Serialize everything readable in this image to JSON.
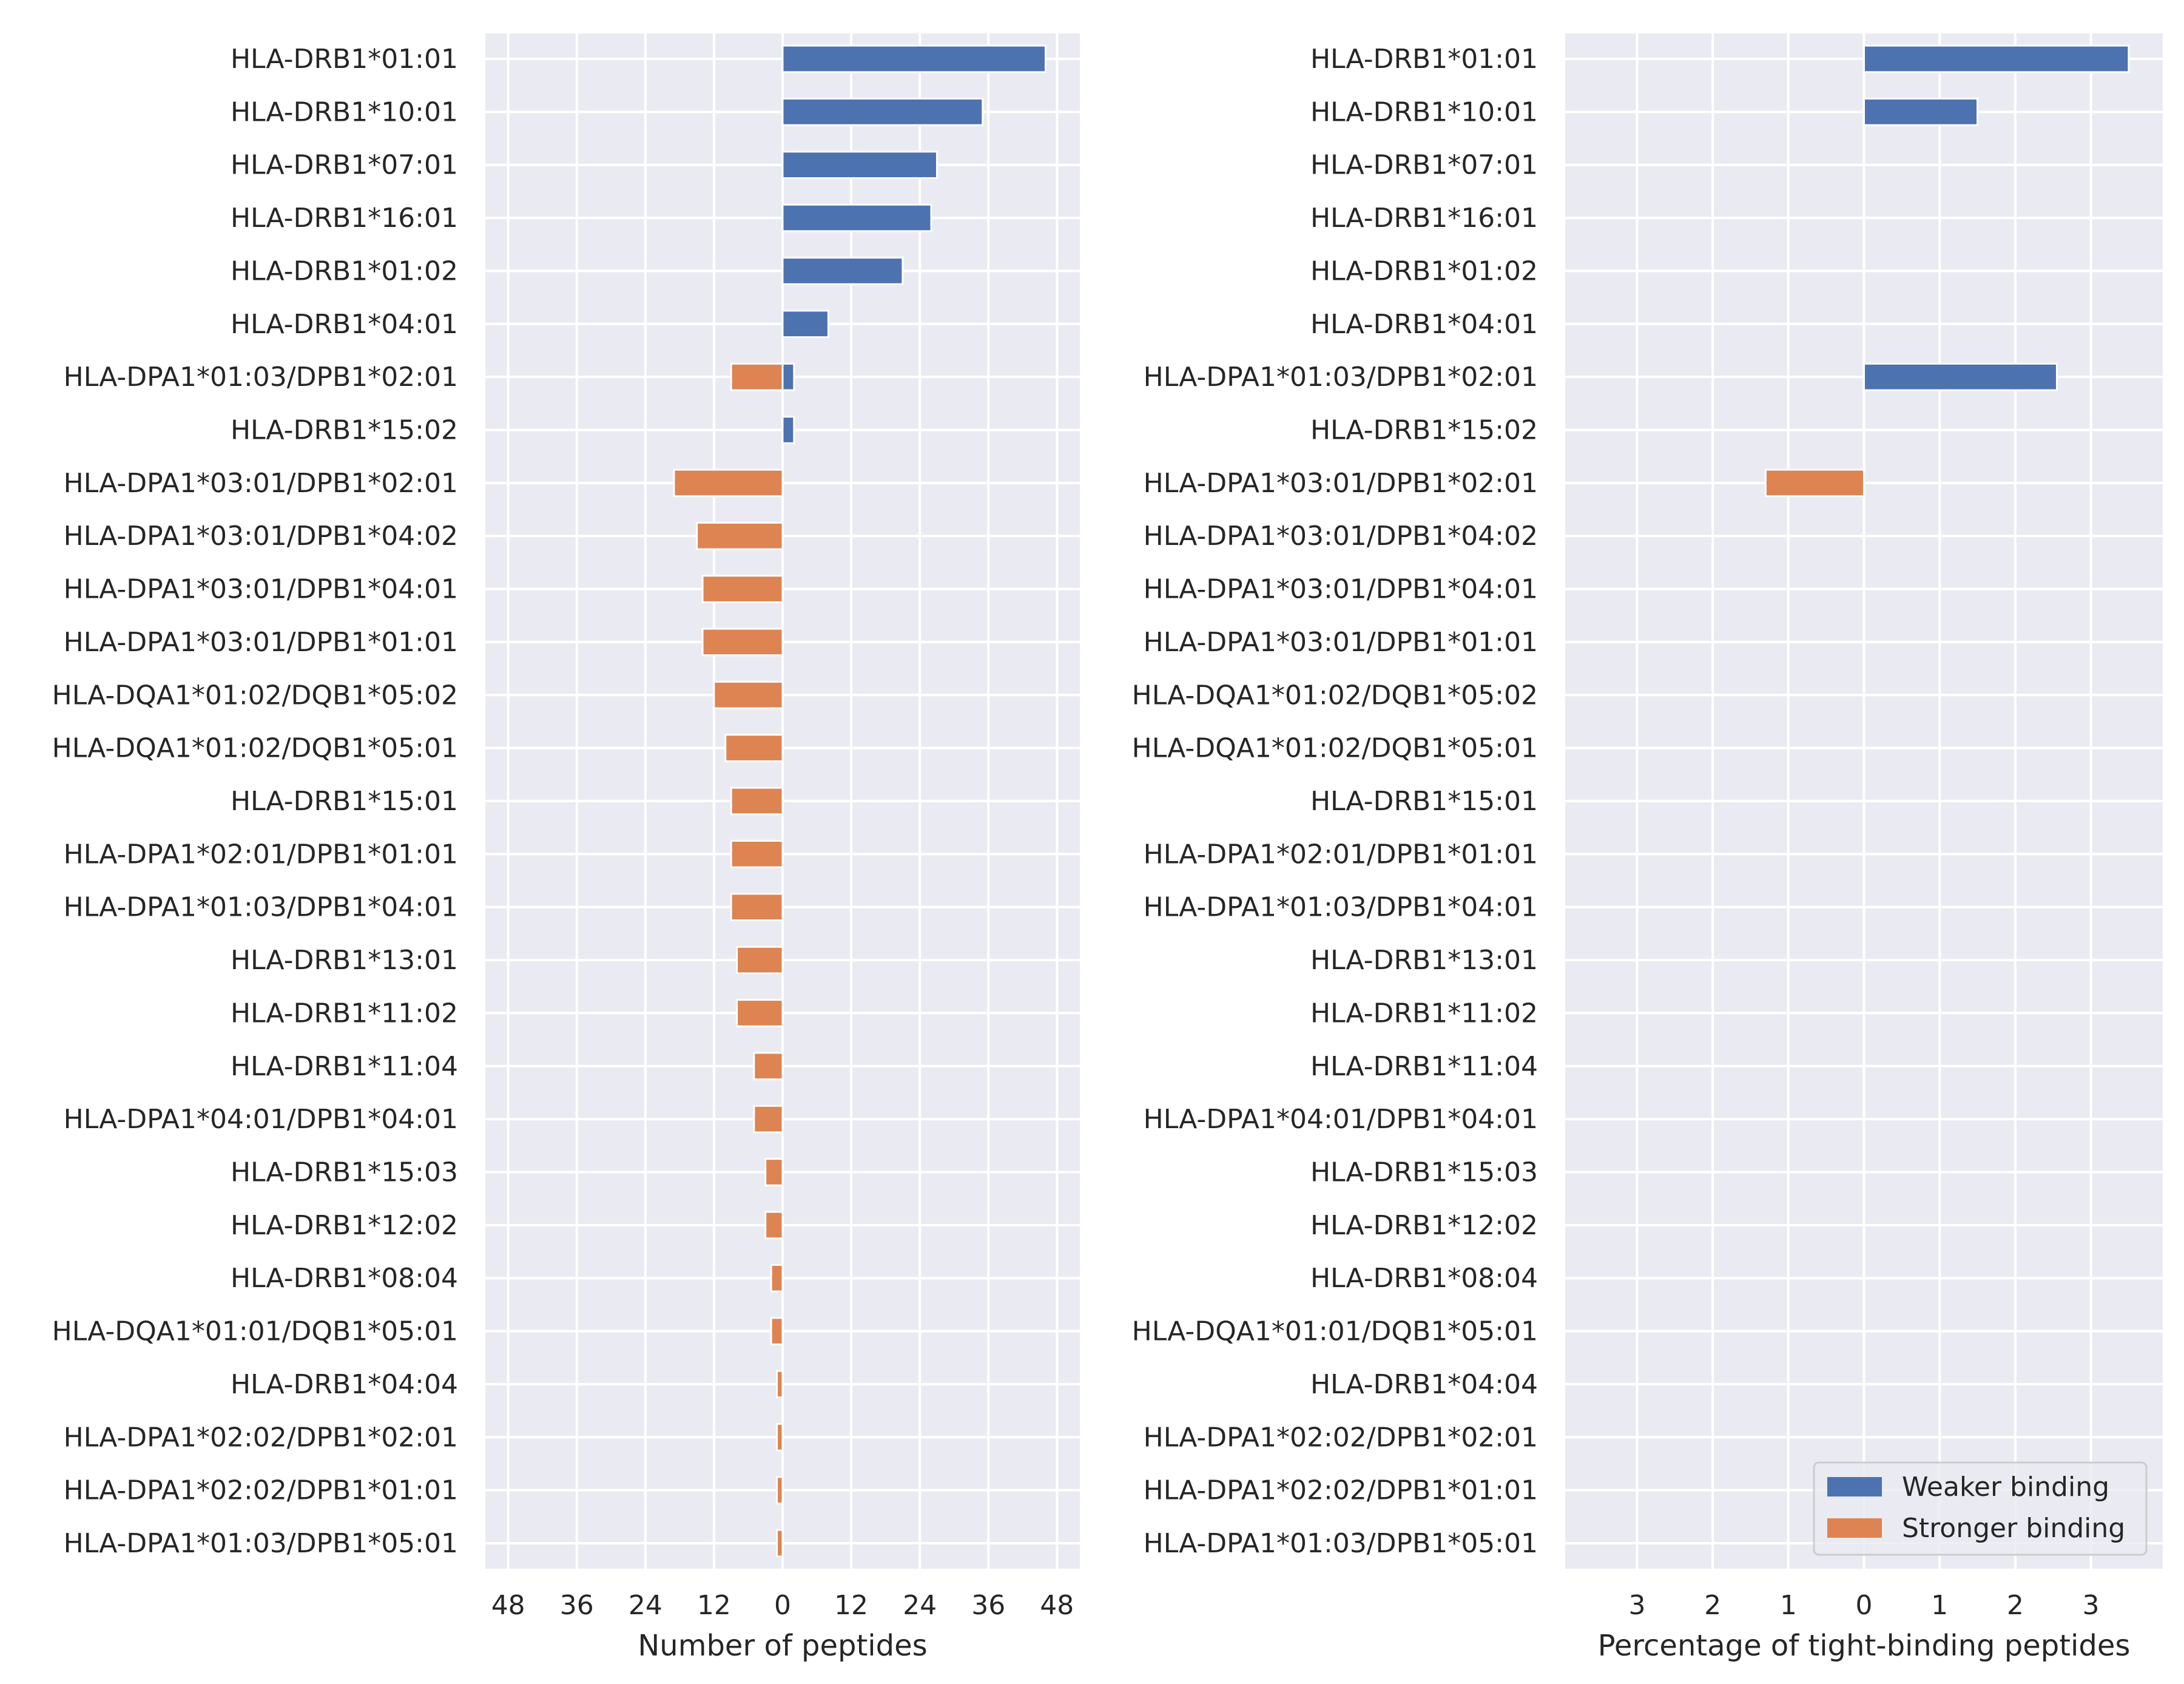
{
  "chart_data": [
    {
      "type": "bar",
      "orientation": "horizontal",
      "xlabel": "Number of peptides",
      "x_tick_labels": [
        "48",
        "36",
        "24",
        "12",
        "0",
        "12",
        "24",
        "36",
        "48"
      ],
      "x_ticks": [
        -48,
        -36,
        -24,
        -12,
        0,
        12,
        24,
        36,
        48
      ],
      "xlim": [
        -52,
        52
      ],
      "grid": true,
      "categories": [
        "HLA-DRB1*01:01",
        "HLA-DRB1*10:01",
        "HLA-DRB1*07:01",
        "HLA-DRB1*16:01",
        "HLA-DRB1*01:02",
        "HLA-DRB1*04:01",
        "HLA-DPA1*01:03/DPB1*02:01",
        "HLA-DRB1*15:02",
        "HLA-DPA1*03:01/DPB1*02:01",
        "HLA-DPA1*03:01/DPB1*04:02",
        "HLA-DPA1*03:01/DPB1*04:01",
        "HLA-DPA1*03:01/DPB1*01:01",
        "HLA-DQA1*01:02/DQB1*05:02",
        "HLA-DQA1*01:02/DQB1*05:01",
        "HLA-DRB1*15:01",
        "HLA-DPA1*02:01/DPB1*01:01",
        "HLA-DPA1*01:03/DPB1*04:01",
        "HLA-DRB1*13:01",
        "HLA-DRB1*11:02",
        "HLA-DRB1*11:04",
        "HLA-DPA1*04:01/DPB1*04:01",
        "HLA-DRB1*15:03",
        "HLA-DRB1*12:02",
        "HLA-DRB1*08:04",
        "HLA-DQA1*01:01/DQB1*05:01",
        "HLA-DRB1*04:04",
        "HLA-DPA1*02:02/DPB1*02:01",
        "HLA-DPA1*02:02/DPB1*01:01",
        "HLA-DPA1*01:03/DPB1*05:01"
      ],
      "series": [
        {
          "name": "Weaker binding",
          "values": [
            46,
            35,
            27,
            26,
            21,
            8,
            2,
            2,
            0,
            0,
            0,
            0,
            0,
            0,
            0,
            0,
            0,
            0,
            0,
            0,
            0,
            0,
            0,
            0,
            0,
            0,
            0,
            0,
            0
          ]
        },
        {
          "name": "Stronger binding",
          "values": [
            0,
            0,
            0,
            0,
            0,
            0,
            9,
            0,
            19,
            15,
            14,
            14,
            12,
            10,
            9,
            9,
            9,
            8,
            8,
            5,
            5,
            3,
            3,
            2,
            2,
            1,
            1,
            1,
            1
          ]
        }
      ]
    },
    {
      "type": "bar",
      "orientation": "horizontal",
      "xlabel": "Percentage of tight-binding peptides",
      "x_tick_labels": [
        "3",
        "2",
        "1",
        "0",
        "1",
        "2",
        "3"
      ],
      "x_ticks": [
        -3,
        -2,
        -1,
        0,
        1,
        2,
        3
      ],
      "xlim": [
        -3.95,
        3.95
      ],
      "grid": true,
      "legend_position": "lower-right",
      "categories": [
        "HLA-DRB1*01:01",
        "HLA-DRB1*10:01",
        "HLA-DRB1*07:01",
        "HLA-DRB1*16:01",
        "HLA-DRB1*01:02",
        "HLA-DRB1*04:01",
        "HLA-DPA1*01:03/DPB1*02:01",
        "HLA-DRB1*15:02",
        "HLA-DPA1*03:01/DPB1*02:01",
        "HLA-DPA1*03:01/DPB1*04:02",
        "HLA-DPA1*03:01/DPB1*04:01",
        "HLA-DPA1*03:01/DPB1*01:01",
        "HLA-DQA1*01:02/DQB1*05:02",
        "HLA-DQA1*01:02/DQB1*05:01",
        "HLA-DRB1*15:01",
        "HLA-DPA1*02:01/DPB1*01:01",
        "HLA-DPA1*01:03/DPB1*04:01",
        "HLA-DRB1*13:01",
        "HLA-DRB1*11:02",
        "HLA-DRB1*11:04",
        "HLA-DPA1*04:01/DPB1*04:01",
        "HLA-DRB1*15:03",
        "HLA-DRB1*12:02",
        "HLA-DRB1*08:04",
        "HLA-DQA1*01:01/DQB1*05:01",
        "HLA-DRB1*04:04",
        "HLA-DPA1*02:02/DPB1*02:01",
        "HLA-DPA1*02:02/DPB1*01:01",
        "HLA-DPA1*01:03/DPB1*05:01"
      ],
      "series": [
        {
          "name": "Weaker binding",
          "values": [
            3.5,
            1.5,
            0,
            0,
            0,
            0,
            2.55,
            0,
            0,
            0,
            0,
            0,
            0,
            0,
            0,
            0,
            0,
            0,
            0,
            0,
            0,
            0,
            0,
            0,
            0,
            0,
            0,
            0,
            0
          ]
        },
        {
          "name": "Stronger binding",
          "values": [
            0,
            0,
            0,
            0,
            0,
            0,
            0,
            0,
            1.3,
            0,
            0,
            0,
            0,
            0,
            0,
            0,
            0,
            0,
            0,
            0,
            0,
            0,
            0,
            0,
            0,
            0,
            0,
            0,
            0
          ]
        }
      ]
    }
  ],
  "colors": {
    "weaker": "#4c72b0",
    "stronger": "#dd8452",
    "panel": "#eaeaf2",
    "grid": "#ffffff",
    "text": "#262626"
  }
}
